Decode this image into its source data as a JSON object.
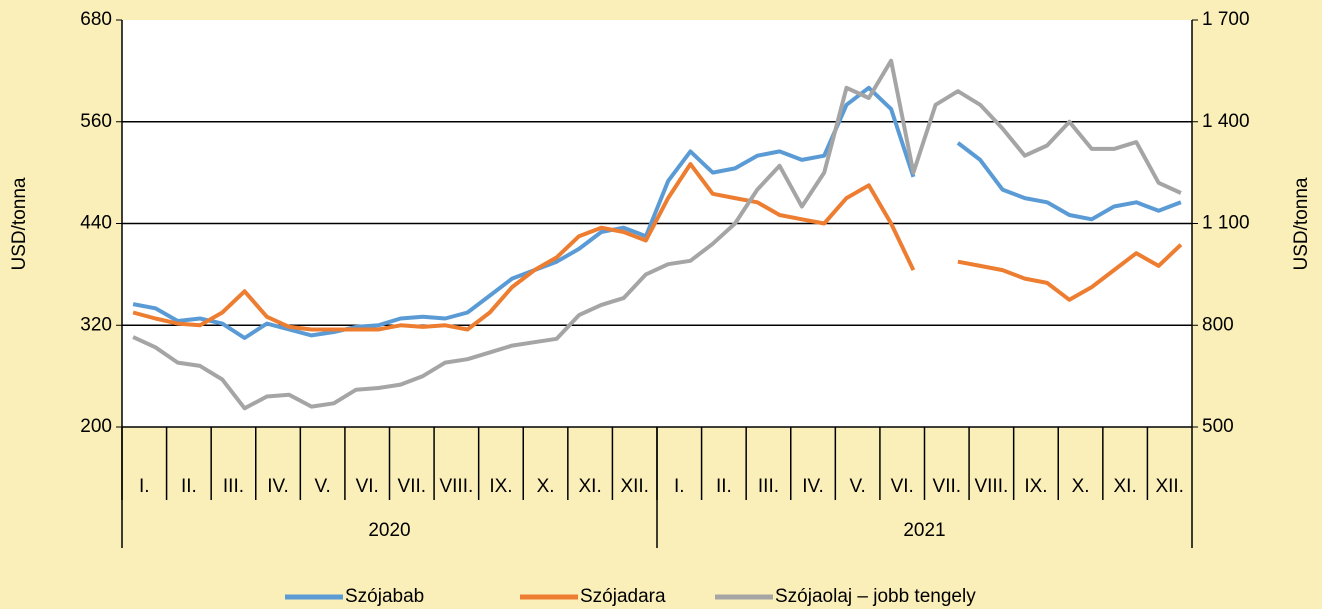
{
  "chart_data": {
    "type": "line",
    "y_label": "USD/tonna",
    "y2_label": "USD/tonna",
    "categories": [
      "I.",
      null,
      "II.",
      null,
      "III.",
      null,
      "IV.",
      null,
      "V.",
      null,
      "VI.",
      null,
      "VII.",
      null,
      "VIII.",
      null,
      "IX.",
      null,
      "X.",
      null,
      "XI.",
      null,
      "XII.",
      null,
      "I.",
      null,
      "II.",
      null,
      "III.",
      null,
      "IV.",
      null,
      "V.",
      null,
      "VI.",
      null,
      "VII.",
      null,
      "VIII.",
      null,
      "IX.",
      null,
      "X.",
      null,
      "XI.",
      null,
      "XII.",
      null
    ],
    "years": [
      "2020",
      "2021"
    ],
    "ylim": [
      200,
      680
    ],
    "yticks": [
      200,
      320,
      440,
      560,
      680
    ],
    "y2lim": [
      500,
      1700
    ],
    "y2ticks": [
      500,
      800,
      {
        "value": 1100,
        "label": "1 100"
      },
      {
        "value": 1400,
        "label": "1 400"
      },
      {
        "value": 1700,
        "label": "1 700"
      }
    ],
    "grid": true,
    "legend": "bottom",
    "series": [
      {
        "name": "Szójabab",
        "color": "#5b9bd5",
        "values": [
          345,
          340,
          325,
          328,
          322,
          305,
          322,
          315,
          308,
          312,
          318,
          320,
          328,
          330,
          328,
          335,
          355,
          375,
          385,
          395,
          410,
          430,
          435,
          425,
          490,
          525,
          500,
          505,
          520,
          525,
          515,
          520,
          580,
          600,
          575,
          495,
          null,
          535,
          515,
          480,
          470,
          465,
          450,
          445,
          460,
          465,
          455,
          465
        ]
      },
      {
        "name": "Szójadara",
        "color": "#ed7d31",
        "values": [
          335,
          328,
          322,
          320,
          335,
          360,
          330,
          318,
          315,
          315,
          315,
          315,
          320,
          318,
          320,
          315,
          335,
          365,
          385,
          400,
          425,
          435,
          430,
          420,
          470,
          510,
          475,
          470,
          465,
          450,
          445,
          440,
          470,
          485,
          440,
          385,
          null,
          395,
          390,
          385,
          375,
          370,
          350,
          365,
          385,
          405,
          390,
          415
        ]
      },
      {
        "name": "Szójaolaj – jobb tengely",
        "color": "#a5a5a5",
        "axis": "y2",
        "values": [
          765,
          735,
          690,
          680,
          640,
          555,
          590,
          595,
          560,
          570,
          610,
          615,
          625,
          650,
          690,
          700,
          720,
          740,
          750,
          760,
          830,
          860,
          880,
          950,
          980,
          990,
          1040,
          1100,
          1200,
          1270,
          1150,
          1250,
          1500,
          1470,
          1580,
          1250,
          1450,
          1490,
          1450,
          1380,
          1300,
          1330,
          1400,
          1320,
          1320,
          1340,
          1220,
          1190
        ]
      }
    ]
  }
}
